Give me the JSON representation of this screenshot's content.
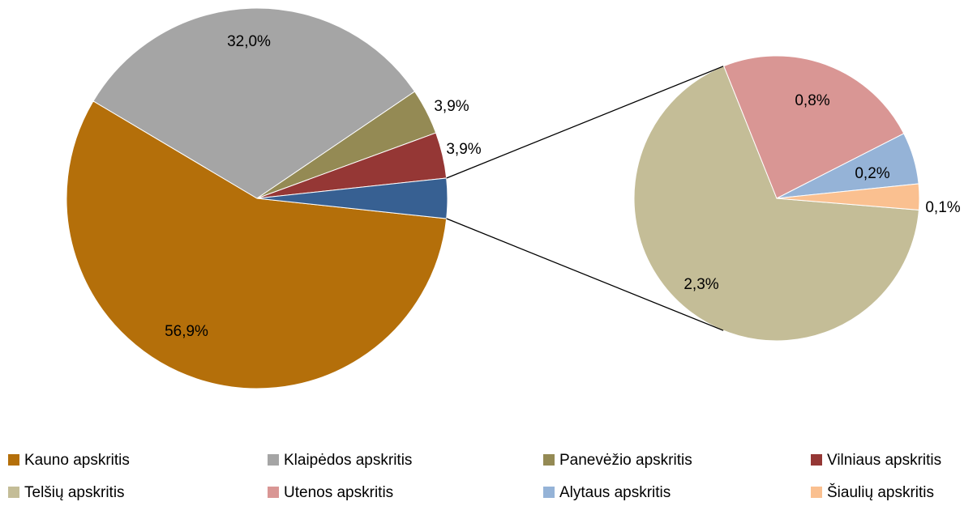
{
  "chart_data": {
    "type": "pie-of-pie",
    "main": {
      "categories": [
        "Kauno apskritis",
        "Klaipėdos apskritis",
        "Panevėžio apskritis",
        "Vilniaus apskritis"
      ],
      "values": [
        56.9,
        32.0,
        3.9,
        3.9
      ],
      "value_labels": [
        "56,9%",
        "32,0%",
        "3,9%",
        "3,9%"
      ],
      "colors": [
        "#b46f0a",
        "#a5a5a5",
        "#948a54",
        "#953735"
      ]
    },
    "other_color": "#376092",
    "secondary": {
      "categories": [
        "Telšių apskritis",
        "Utenos apskritis",
        "Alytaus apskritis",
        "Šiaulių apskritis"
      ],
      "values": [
        2.3,
        0.8,
        0.2,
        0.1
      ],
      "value_labels": [
        "2,3%",
        "0,8%",
        "0,2%",
        "0,1%"
      ],
      "colors": [
        "#c4bd97",
        "#d99694",
        "#95b3d7",
        "#fac090"
      ]
    },
    "legend": "bottom"
  }
}
